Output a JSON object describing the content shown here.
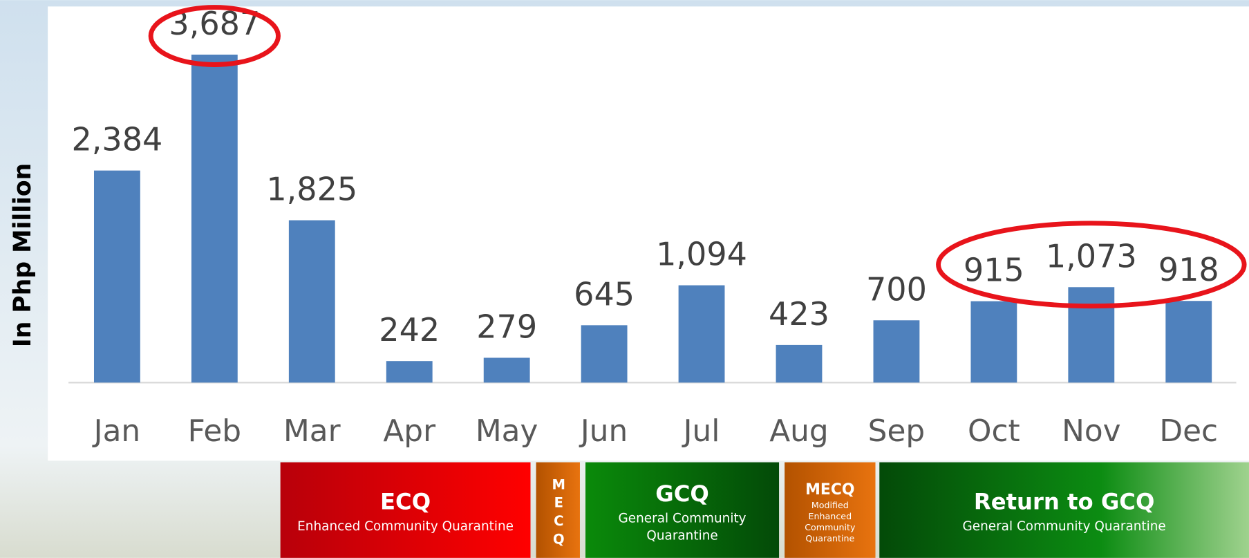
{
  "chart_data": {
    "type": "bar",
    "y_label": "In Php Million",
    "categories": [
      "Jan",
      "Feb",
      "Mar",
      "Apr",
      "May",
      "Jun",
      "Jul",
      "Aug",
      "Sep",
      "Oct",
      "Nov",
      "Dec"
    ],
    "values": [
      2384,
      3687,
      1825,
      242,
      279,
      645,
      1094,
      423,
      700,
      915,
      1073,
      918
    ],
    "value_labels": [
      "2,384",
      "3,687",
      "1,825",
      "242",
      "279",
      "645",
      "1,094",
      "423",
      "700",
      "915",
      "1,073",
      "918"
    ],
    "color": "#4f81bd",
    "ylim": [
      0,
      4300
    ],
    "periods": [
      {
        "title": "ECQ",
        "subtitle": "Enhanced Community Quarantine"
      },
      {
        "title": "MECQ"
      },
      {
        "title": "GCQ",
        "subtitle": "General Community Quarantine"
      },
      {
        "title": "MECQ",
        "subtitle": "Modified Enhanced Community Quarantine"
      },
      {
        "title": "Return to GCQ",
        "subtitle": "General Community Quarantine"
      }
    ]
  }
}
